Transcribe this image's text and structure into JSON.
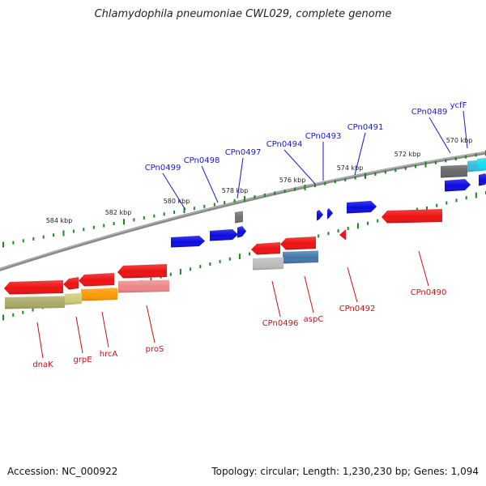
{
  "title": "Chlamydophila pneumoniae CWL029, complete genome",
  "footer": {
    "accession": "Accession: NC_000922",
    "summary": "Topology: circular; Length: 1,230,230 bp; Genes: 1,094"
  },
  "colors": {
    "backbone": "#808080",
    "tick": "#1a8a1a",
    "forward_label": "#1a1acc",
    "reverse_label": "#cc1111",
    "forward_gene": "#0a0ae0",
    "reverse_gene": "#ee1111",
    "ruler_text": "#222222"
  },
  "ruler": {
    "unit": "kbp",
    "labels": [
      "570 kbp",
      "572 kbp",
      "574 kbp",
      "576 kbp",
      "578 kbp",
      "580 kbp",
      "582 kbp",
      "584 kbp"
    ]
  },
  "forward_labels": [
    "ycfF",
    "CPn0489",
    "CPn0491",
    "CPn0493",
    "CPn0494",
    "CPn0497",
    "CPn0498",
    "CPn0499"
  ],
  "reverse_labels": [
    "CPn0490",
    "CPn0492",
    "aspC",
    "CPn0496",
    "proS",
    "hrcA",
    "grpE",
    "dnaK"
  ]
}
